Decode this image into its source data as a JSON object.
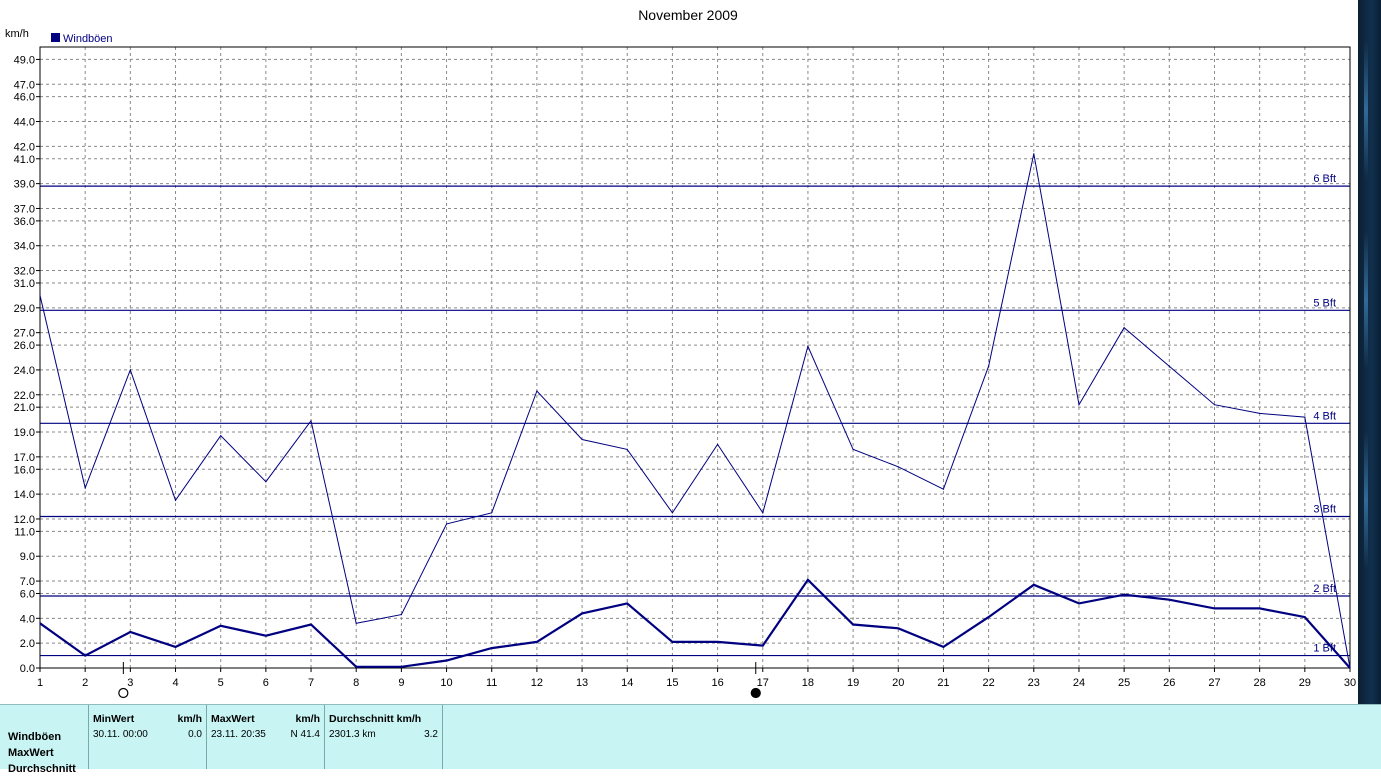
{
  "chart_data": {
    "type": "line",
    "title": "November 2009",
    "ylabel": "km/h",
    "legend": "Windböen",
    "legend_color": "#000080",
    "ylim": [
      0,
      50
    ],
    "yticks": [
      "0.0",
      "2.0",
      "4.0",
      "6.0",
      "7.0",
      "9.0",
      "11.0",
      "12.0",
      "14.0",
      "16.0",
      "17.0",
      "19.0",
      "21.0",
      "22.0",
      "24.0",
      "26.0",
      "27.0",
      "29.0",
      "31.0",
      "32.0",
      "34.0",
      "36.0",
      "37.0",
      "39.0",
      "41.0",
      "42.0",
      "44.0",
      "46.0",
      "47.0",
      "49.0"
    ],
    "x": [
      1,
      2,
      3,
      4,
      5,
      6,
      7,
      8,
      9,
      10,
      11,
      12,
      13,
      14,
      15,
      16,
      17,
      18,
      19,
      20,
      21,
      22,
      23,
      24,
      25,
      26,
      27,
      28,
      29,
      30
    ],
    "xticks": [
      "1",
      "2",
      "3",
      "4",
      "5",
      "6",
      "7",
      "8",
      "9",
      "10",
      "11",
      "12",
      "13",
      "14",
      "15",
      "16",
      "17",
      "18",
      "19",
      "20",
      "21",
      "22",
      "23",
      "24",
      "25",
      "26",
      "27",
      "28",
      "29",
      "30"
    ],
    "series": [
      {
        "name": "Windböen",
        "kind": "max",
        "color": "#000080",
        "values": [
          30.0,
          14.5,
          24.0,
          13.5,
          18.7,
          15.0,
          19.9,
          3.6,
          4.3,
          11.6,
          12.5,
          22.3,
          18.4,
          17.6,
          12.5,
          18.0,
          12.5,
          25.9,
          17.6,
          16.2,
          14.4,
          24.3,
          41.4,
          21.2,
          27.4,
          24.3,
          21.2,
          20.5,
          20.2,
          0.0
        ]
      },
      {
        "name": "Windböen",
        "kind": "avg",
        "color": "#000080",
        "values": [
          3.6,
          1.0,
          2.9,
          1.7,
          3.4,
          2.6,
          3.5,
          0.1,
          0.1,
          0.6,
          1.6,
          2.1,
          4.4,
          5.2,
          2.1,
          2.1,
          1.8,
          7.1,
          3.5,
          3.2,
          1.7,
          4.1,
          6.7,
          5.2,
          5.9,
          5.5,
          4.8,
          4.8,
          4.1,
          0.0
        ]
      }
    ],
    "bft_lines": [
      {
        "label": "1 Bft",
        "value": 1.0
      },
      {
        "label": "2 Bft",
        "value": 5.8
      },
      {
        "label": "3 Bft",
        "value": 12.2
      },
      {
        "label": "4 Bft",
        "value": 19.7
      },
      {
        "label": "5 Bft",
        "value": 28.8
      },
      {
        "label": "6 Bft",
        "value": 38.8
      }
    ],
    "moon_phases": [
      {
        "day": 3,
        "symbol": "○",
        "name": "full-moon-icon"
      },
      {
        "day": 17,
        "symbol": "●",
        "name": "new-moon-icon"
      }
    ]
  },
  "stats": {
    "row_labels": [
      "Windböen",
      "MaxWert",
      "Durchschnitt"
    ],
    "min": {
      "header": "MinWert",
      "unit": "km/h",
      "when": "30.11.  00:00",
      "value": "0.0"
    },
    "max": {
      "header": "MaxWert",
      "unit": "km/h",
      "when": "23.11.  20:35",
      "value": "N 41.4"
    },
    "avg": {
      "header": "Durchschnitt km/h",
      "unit": "",
      "when": "2301.3 km",
      "value": "3.2"
    }
  }
}
